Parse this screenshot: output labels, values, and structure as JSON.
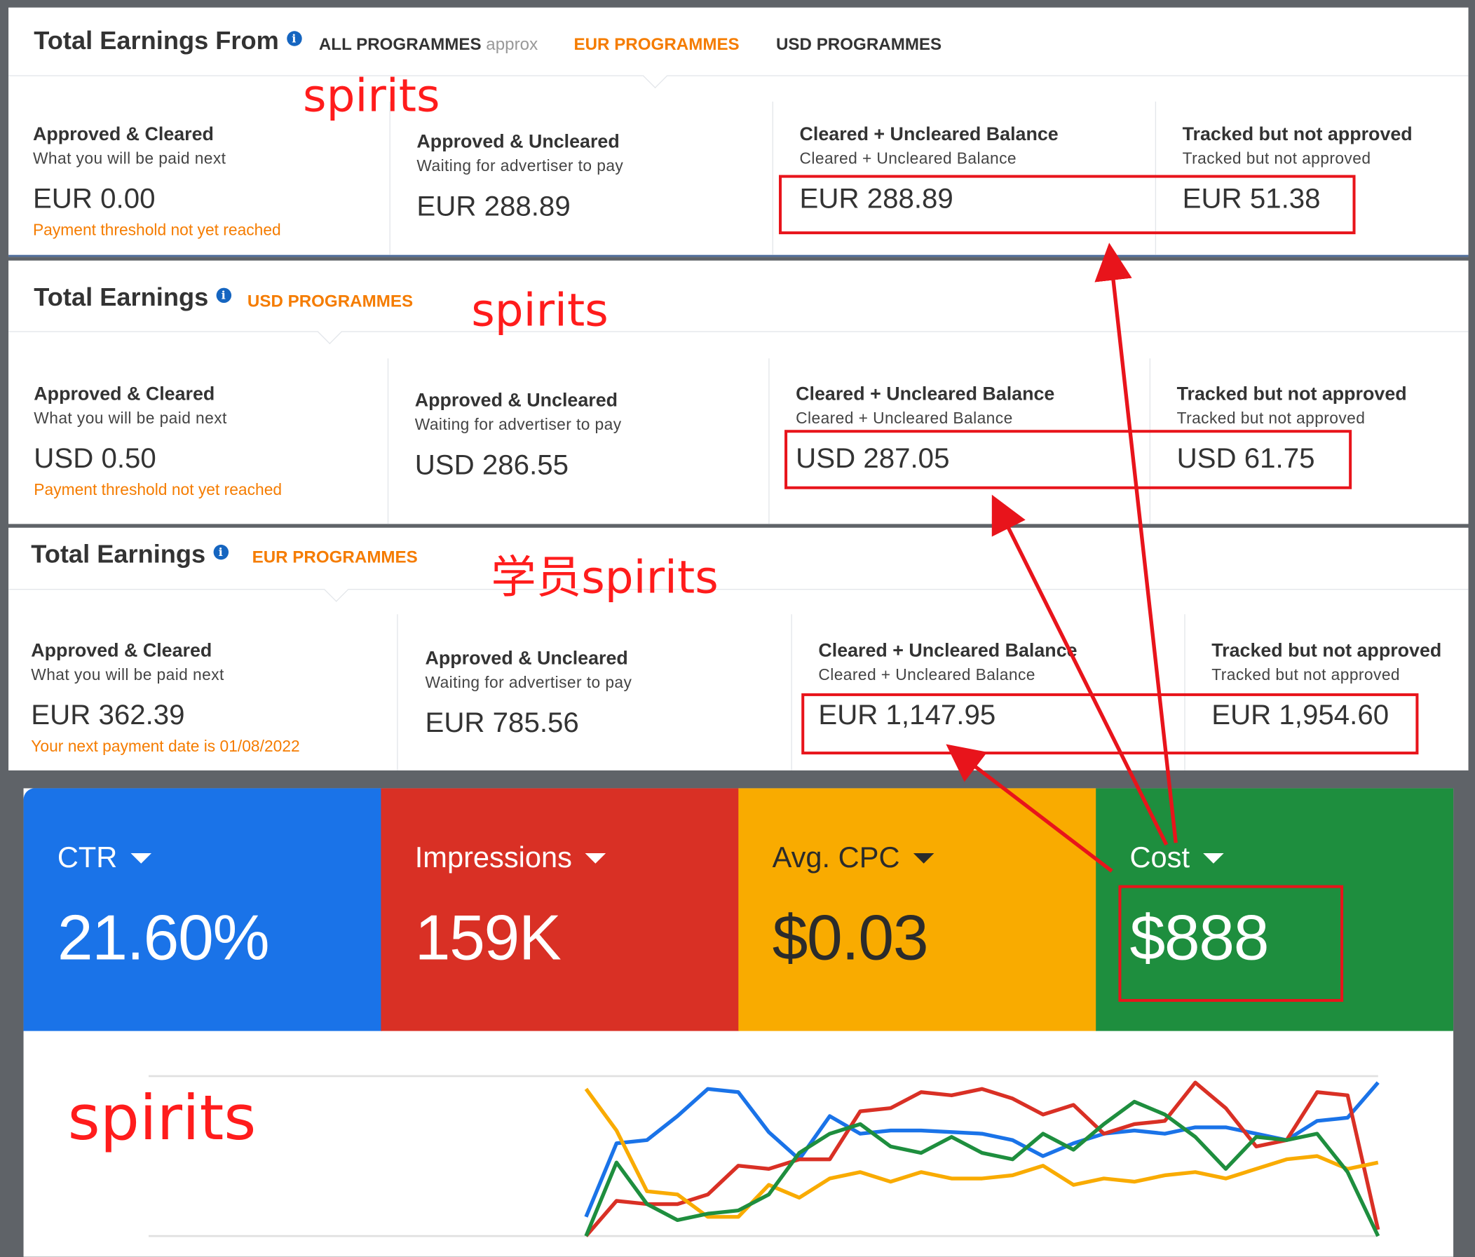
{
  "panel1": {
    "title": "Total Earnings From",
    "tabs": [
      {
        "label": "ALL PROGRAMMES",
        "suffix": "approx"
      },
      {
        "label": "EUR PROGRAMMES"
      },
      {
        "label": "USD PROGRAMMES"
      }
    ],
    "cols": [
      {
        "label": "Approved & Cleared",
        "sub": "What you will be paid next",
        "amount": "EUR 0.00",
        "note": "Payment threshold not yet reached"
      },
      {
        "label": "Approved & Uncleared",
        "sub": "Waiting for advertiser to pay",
        "amount": "EUR 288.89"
      },
      {
        "label": "Cleared + Uncleared Balance",
        "sub": "Cleared + Uncleared Balance",
        "amount": "EUR 288.89"
      },
      {
        "label": "Tracked but not approved",
        "sub": "Tracked but not approved",
        "amount": "EUR 51.38"
      }
    ]
  },
  "panel2": {
    "title": "Total Earnings",
    "tab": "USD PROGRAMMES",
    "cols": [
      {
        "label": "Approved & Cleared",
        "sub": "What you will be paid next",
        "amount": "USD 0.50",
        "note": "Payment threshold not yet reached"
      },
      {
        "label": "Approved & Uncleared",
        "sub": "Waiting for advertiser to pay",
        "amount": "USD 286.55"
      },
      {
        "label": "Cleared + Uncleared Balance",
        "sub": "Cleared + Uncleared Balance",
        "amount": "USD 287.05"
      },
      {
        "label": "Tracked but not approved",
        "sub": "Tracked but not approved",
        "amount": "USD 61.75"
      }
    ]
  },
  "panel3": {
    "title": "Total Earnings",
    "tab": "EUR PROGRAMMES",
    "cols": [
      {
        "label": "Approved & Cleared",
        "sub": "What you will be paid next",
        "amount": "EUR 362.39",
        "note": "Your next payment date is 01/08/2022"
      },
      {
        "label": "Approved & Uncleared",
        "sub": "Waiting for advertiser to pay",
        "amount": "EUR 785.56"
      },
      {
        "label": "Cleared + Uncleared Balance",
        "sub": "Cleared + Uncleared Balance",
        "amount": "EUR 1,147.95"
      },
      {
        "label": "Tracked but not approved",
        "sub": "Tracked but not approved",
        "amount": "EUR 1,954.60"
      }
    ]
  },
  "annotations": {
    "a1": "spirits",
    "a2": "spirits",
    "a3": "学员spirits",
    "a4": "spirits"
  },
  "metrics": [
    {
      "name": "CTR",
      "value": "21.60%",
      "color": "#1a73e8"
    },
    {
      "name": "Impressions",
      "value": "159K",
      "color": "#d93025"
    },
    {
      "name": "Avg. CPC",
      "value": "$0.03",
      "color": "#f9ab00"
    },
    {
      "name": "Cost",
      "value": "$888",
      "color": "#1e8e3e"
    }
  ],
  "chart_data": {
    "type": "line",
    "series": [
      {
        "color": "#1a73e8",
        "values": [
          12,
          58,
          60,
          75,
          92,
          90,
          65,
          48,
          75,
          64,
          66,
          66,
          65,
          64,
          60,
          50,
          58,
          64,
          66,
          64,
          68,
          68,
          64,
          60,
          72,
          74,
          96
        ]
      },
      {
        "color": "#d93025",
        "values": [
          0,
          22,
          20,
          20,
          26,
          44,
          42,
          48,
          48,
          78,
          80,
          90,
          88,
          92,
          86,
          76,
          82,
          64,
          70,
          72,
          96,
          80,
          56,
          60,
          90,
          88,
          4
        ]
      },
      {
        "color": "#f9ab00",
        "values": [
          92,
          66,
          28,
          26,
          12,
          12,
          32,
          24,
          36,
          40,
          34,
          40,
          36,
          36,
          38,
          44,
          32,
          36,
          34,
          38,
          40,
          36,
          42,
          48,
          50,
          42,
          46
        ]
      },
      {
        "color": "#1e8e3e",
        "values": [
          0,
          46,
          20,
          10,
          14,
          16,
          26,
          52,
          64,
          70,
          56,
          52,
          62,
          52,
          48,
          64,
          54,
          70,
          84,
          76,
          62,
          42,
          62,
          60,
          64,
          40,
          0
        ]
      }
    ]
  }
}
